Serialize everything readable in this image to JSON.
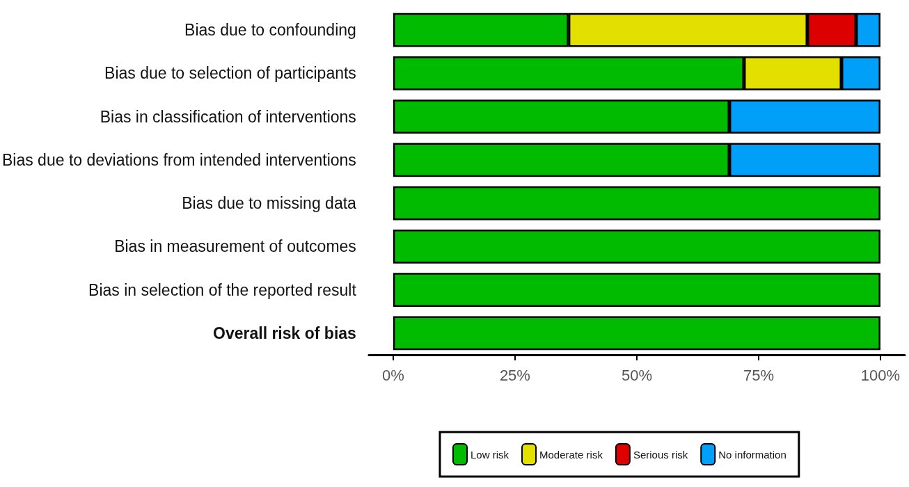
{
  "chart_data": {
    "type": "bar",
    "orientation": "horizontal",
    "stacked": true,
    "categories": [
      "Bias due to confounding",
      "Bias due to selection of participants",
      "Bias in classification of interventions",
      "Bias due to deviations from intended interventions",
      "Bias due to missing data",
      "Bias in measurement of outcomes",
      "Bias in selection of the reported result",
      "Overall risk of bias"
    ],
    "series": [
      {
        "name": "Low risk",
        "color": "#00bb00",
        "values": [
          36,
          72,
          69,
          69,
          100,
          100,
          100,
          100
        ]
      },
      {
        "name": "Moderate risk",
        "color": "#e3e000",
        "values": [
          49,
          20,
          0,
          0,
          0,
          0,
          0,
          0
        ]
      },
      {
        "name": "Serious risk",
        "color": "#dd0000",
        "values": [
          10,
          0,
          0,
          0,
          0,
          0,
          0,
          0
        ]
      },
      {
        "name": "No information",
        "color": "#00a0f8",
        "values": [
          5,
          8,
          31,
          31,
          0,
          0,
          0,
          0
        ]
      }
    ],
    "xlim": [
      -5,
      105
    ],
    "xticks": [
      {
        "value": 0,
        "label": "0%"
      },
      {
        "value": 25,
        "label": "25%"
      },
      {
        "value": 50,
        "label": "50%"
      },
      {
        "value": 75,
        "label": "75%"
      },
      {
        "value": 100,
        "label": "100%"
      }
    ],
    "grid": false,
    "legend": "bottom"
  }
}
